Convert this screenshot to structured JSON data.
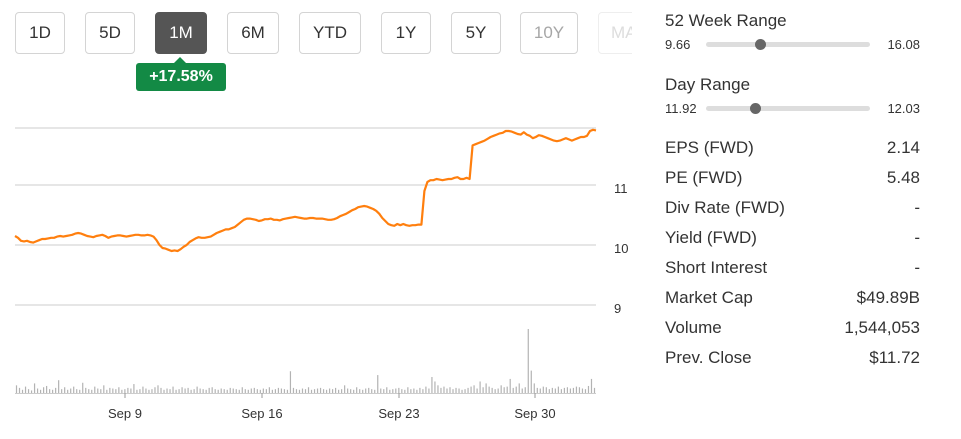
{
  "range_tabs": [
    {
      "id": "1d",
      "label": "1D"
    },
    {
      "id": "5d",
      "label": "5D"
    },
    {
      "id": "1m",
      "label": "1M",
      "active": true
    },
    {
      "id": "6m",
      "label": "6M"
    },
    {
      "id": "ytd",
      "label": "YTD"
    },
    {
      "id": "1y",
      "label": "1Y"
    },
    {
      "id": "5y",
      "label": "5Y"
    },
    {
      "id": "10y",
      "label": "10Y"
    },
    {
      "id": "max",
      "label": "MAX"
    }
  ],
  "change_badge": "+17.58%",
  "colors": {
    "price_line": "#ff7f0e",
    "badge": "#138a45",
    "volume_bar": "#b3b3b3",
    "grid": "#cccccc",
    "active_tab": "#555555"
  },
  "chart_data": {
    "type": "line",
    "y_ticks": [
      "11",
      "10",
      "9"
    ],
    "ylim": [
      8.85,
      11.95
    ],
    "x_ticks": [
      "Sep 9",
      "Sep 16",
      "Sep 23",
      "Sep 30"
    ],
    "grid": true,
    "series": [
      {
        "values": [
          10.15,
          10.12,
          10.07,
          10.06,
          10.07,
          10.05,
          10.04,
          10.06,
          10.08,
          10.1,
          10.1,
          10.11,
          10.12,
          10.12,
          10.14,
          10.15,
          10.14,
          10.15,
          10.16,
          10.17,
          10.19,
          10.2,
          10.19,
          10.17,
          10.15,
          10.14,
          10.13,
          10.15,
          10.16,
          10.17,
          10.15,
          10.12,
          10.14,
          10.15,
          10.16,
          10.16,
          10.15,
          10.14,
          10.15,
          10.16,
          10.17,
          10.17,
          10.16,
          10.16,
          10.17,
          10.16,
          10.14,
          10.08,
          10.0,
          9.95,
          9.94,
          9.92,
          9.9,
          9.91,
          9.9,
          9.93,
          9.97,
          10.0,
          10.05,
          10.08,
          10.11,
          10.13,
          10.12,
          10.12,
          10.13,
          10.14,
          10.17,
          10.2,
          10.22,
          10.24,
          10.26,
          10.26,
          10.28,
          10.3,
          10.34,
          10.38,
          10.42,
          10.44,
          10.44,
          10.43,
          10.42,
          10.4,
          10.41,
          10.43,
          10.43,
          10.44,
          10.42,
          10.42,
          10.41,
          10.43,
          10.44,
          10.45,
          10.46,
          10.47,
          10.46,
          10.45,
          10.44,
          10.44,
          10.45,
          10.45,
          10.44,
          10.44,
          10.44,
          10.43,
          10.42,
          10.42,
          10.43,
          10.45,
          10.48,
          10.5,
          10.52,
          10.55,
          10.58,
          10.6,
          10.63,
          10.64,
          10.65,
          10.64,
          10.62,
          10.6,
          10.57,
          10.52,
          10.45,
          10.4,
          10.35,
          10.33,
          10.32,
          10.35,
          10.33,
          10.35,
          10.33,
          10.32,
          10.33,
          10.33,
          10.34,
          10.34,
          10.9,
          11.05,
          11.08,
          11.08,
          11.1,
          11.09,
          11.08,
          11.09,
          11.1,
          11.1,
          11.12,
          11.13,
          11.1,
          11.1,
          11.12,
          11.1,
          11.66,
          11.68,
          11.7,
          11.72,
          11.74,
          11.77,
          11.8,
          11.82,
          11.84,
          11.86,
          11.87,
          11.9,
          11.9,
          11.89,
          11.87,
          11.85,
          11.84,
          11.88,
          11.84,
          11.82,
          11.78,
          11.8,
          11.83,
          11.82,
          11.8,
          11.78,
          11.76,
          11.74,
          11.73,
          11.74,
          11.76,
          11.78,
          11.76,
          11.74,
          11.76,
          11.78,
          11.8,
          11.8,
          11.82,
          11.9,
          11.92,
          11.91
        ]
      }
    ],
    "volume": [
      0.12,
      0.08,
      0.05,
      0.1,
      0.06,
      0.04,
      0.15,
      0.07,
      0.05,
      0.09,
      0.11,
      0.06,
      0.05,
      0.08,
      0.2,
      0.06,
      0.09,
      0.05,
      0.07,
      0.1,
      0.06,
      0.05,
      0.16,
      0.08,
      0.06,
      0.05,
      0.1,
      0.07,
      0.06,
      0.12,
      0.05,
      0.08,
      0.07,
      0.06,
      0.09,
      0.05,
      0.06,
      0.08,
      0.07,
      0.14,
      0.05,
      0.06,
      0.1,
      0.07,
      0.05,
      0.06,
      0.09,
      0.12,
      0.08,
      0.05,
      0.07,
      0.06,
      0.1,
      0.05,
      0.06,
      0.09,
      0.07,
      0.08,
      0.05,
      0.06,
      0.1,
      0.07,
      0.06,
      0.05,
      0.08,
      0.09,
      0.06,
      0.05,
      0.07,
      0.06,
      0.05,
      0.08,
      0.07,
      0.06,
      0.05,
      0.09,
      0.06,
      0.05,
      0.07,
      0.08,
      0.06,
      0.05,
      0.07,
      0.06,
      0.09,
      0.05,
      0.06,
      0.08,
      0.07,
      0.06,
      0.05,
      0.34,
      0.08,
      0.06,
      0.05,
      0.07,
      0.06,
      0.09,
      0.05,
      0.06,
      0.07,
      0.08,
      0.06,
      0.05,
      0.07,
      0.06,
      0.08,
      0.05,
      0.06,
      0.12,
      0.07,
      0.06,
      0.05,
      0.09,
      0.06,
      0.05,
      0.07,
      0.08,
      0.06,
      0.05,
      0.28,
      0.07,
      0.06,
      0.09,
      0.05,
      0.06,
      0.07,
      0.08,
      0.06,
      0.05,
      0.09,
      0.06,
      0.07,
      0.05,
      0.08,
      0.06,
      0.1,
      0.07,
      0.25,
      0.18,
      0.12,
      0.08,
      0.1,
      0.07,
      0.09,
      0.06,
      0.08,
      0.07,
      0.05,
      0.06,
      0.08,
      0.1,
      0.12,
      0.07,
      0.18,
      0.09,
      0.15,
      0.1,
      0.08,
      0.06,
      0.07,
      0.12,
      0.09,
      0.1,
      0.22,
      0.08,
      0.1,
      0.15,
      0.07,
      0.09,
      1.0,
      0.35,
      0.15,
      0.08,
      0.07,
      0.1,
      0.09,
      0.06,
      0.08,
      0.07,
      0.1,
      0.06,
      0.08,
      0.09,
      0.07,
      0.08,
      0.1,
      0.09,
      0.07,
      0.06,
      0.11,
      0.22,
      0.08
    ]
  },
  "stats": {
    "week52": {
      "label": "52 Week Range",
      "low": "9.66",
      "high": "16.08",
      "position": 0.33
    },
    "day": {
      "label": "Day Range",
      "low": "11.92",
      "high": "12.03",
      "position": 0.3
    },
    "rows": [
      {
        "key": "eps",
        "label": "EPS (FWD)",
        "value": "2.14"
      },
      {
        "key": "pe",
        "label": "PE (FWD)",
        "value": "5.48"
      },
      {
        "key": "div-rate",
        "label": "Div Rate (FWD)",
        "value": "-"
      },
      {
        "key": "yield",
        "label": "Yield (FWD)",
        "value": "-"
      },
      {
        "key": "short-interest",
        "label": "Short Interest",
        "value": "-"
      },
      {
        "key": "market-cap",
        "label": "Market Cap",
        "value": "$49.89B"
      },
      {
        "key": "volume",
        "label": "Volume",
        "value": "1,544,053"
      },
      {
        "key": "prev-close",
        "label": "Prev. Close",
        "value": "$11.72"
      }
    ]
  }
}
